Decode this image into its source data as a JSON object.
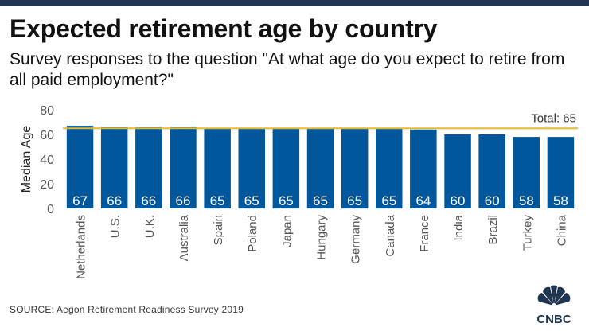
{
  "header": {
    "title": "Expected retirement age by country",
    "subtitle": "Survey responses to the question \"At what age do you expect to retire from all paid employment?\""
  },
  "footer": {
    "source": "SOURCE: Aegon Retirement Readiness Survey 2019",
    "logo_text": "CNBC"
  },
  "colors": {
    "bar": "#00579b",
    "reference_line": "#e3b92f",
    "top_bar": "#1f3550",
    "bar_label": "#ffffff",
    "axis_text": "#555555"
  },
  "chart_data": {
    "type": "bar",
    "categories": [
      "Netherlands",
      "U.S.",
      "U.K.",
      "Australia",
      "Spain",
      "Poland",
      "Japan",
      "Hungary",
      "Germany",
      "Canada",
      "France",
      "India",
      "Brazil",
      "Turkey",
      "China"
    ],
    "values": [
      67,
      66,
      66,
      66,
      65,
      65,
      65,
      65,
      65,
      65,
      64,
      60,
      60,
      58,
      58
    ],
    "ylabel": "Median Age",
    "ylim": [
      0,
      80
    ],
    "yticks": [
      0,
      20,
      40,
      60,
      80
    ],
    "reference_line": {
      "value": 65,
      "label": "Total: 65"
    },
    "data_labels": true,
    "grid": false,
    "legend": "none"
  }
}
